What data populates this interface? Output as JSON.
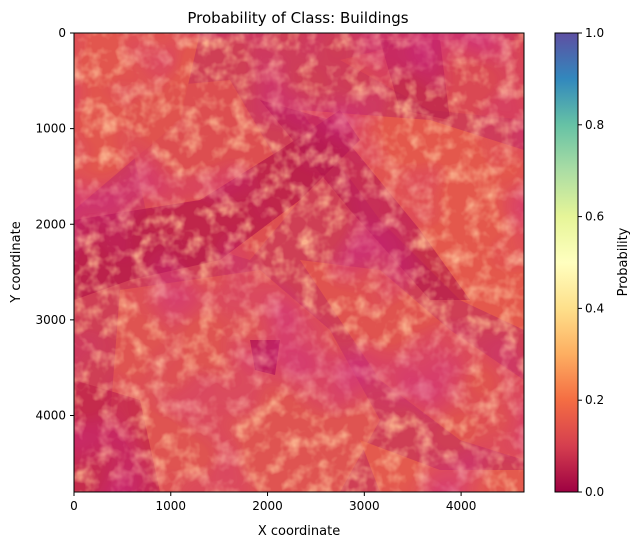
{
  "chart_data": {
    "type": "heatmap",
    "title": "Probability of Class: Buildings",
    "xlabel": "X coordinate",
    "ylabel": "Y coordinate",
    "xlim": [
      0,
      4650
    ],
    "ylim": [
      4800,
      0
    ],
    "xticks": [
      0,
      1000,
      2000,
      3000,
      4000
    ],
    "yticks": [
      0,
      1000,
      2000,
      3000,
      4000
    ],
    "colorbar": {
      "label": "Probability",
      "colormap": "Spectral",
      "range": [
        0.0,
        1.0
      ],
      "ticks": [
        "0.0",
        "0.2",
        "0.4",
        "0.6",
        "0.8",
        "1.0"
      ]
    },
    "value_range_observed": [
      0.0,
      0.25
    ],
    "typical_value": 0.08,
    "grid": false
  },
  "colors": {
    "low": "#9e0142",
    "mid_low": "#d53e4f",
    "orange": "#f46d43",
    "light_orange": "#fdae61",
    "yellow": "#fee08b",
    "center": "#ffffbf",
    "light_green": "#e6f598",
    "green": "#abdda4",
    "teal": "#66c2a5",
    "blue": "#3288bd",
    "high": "#5e4fa2"
  }
}
